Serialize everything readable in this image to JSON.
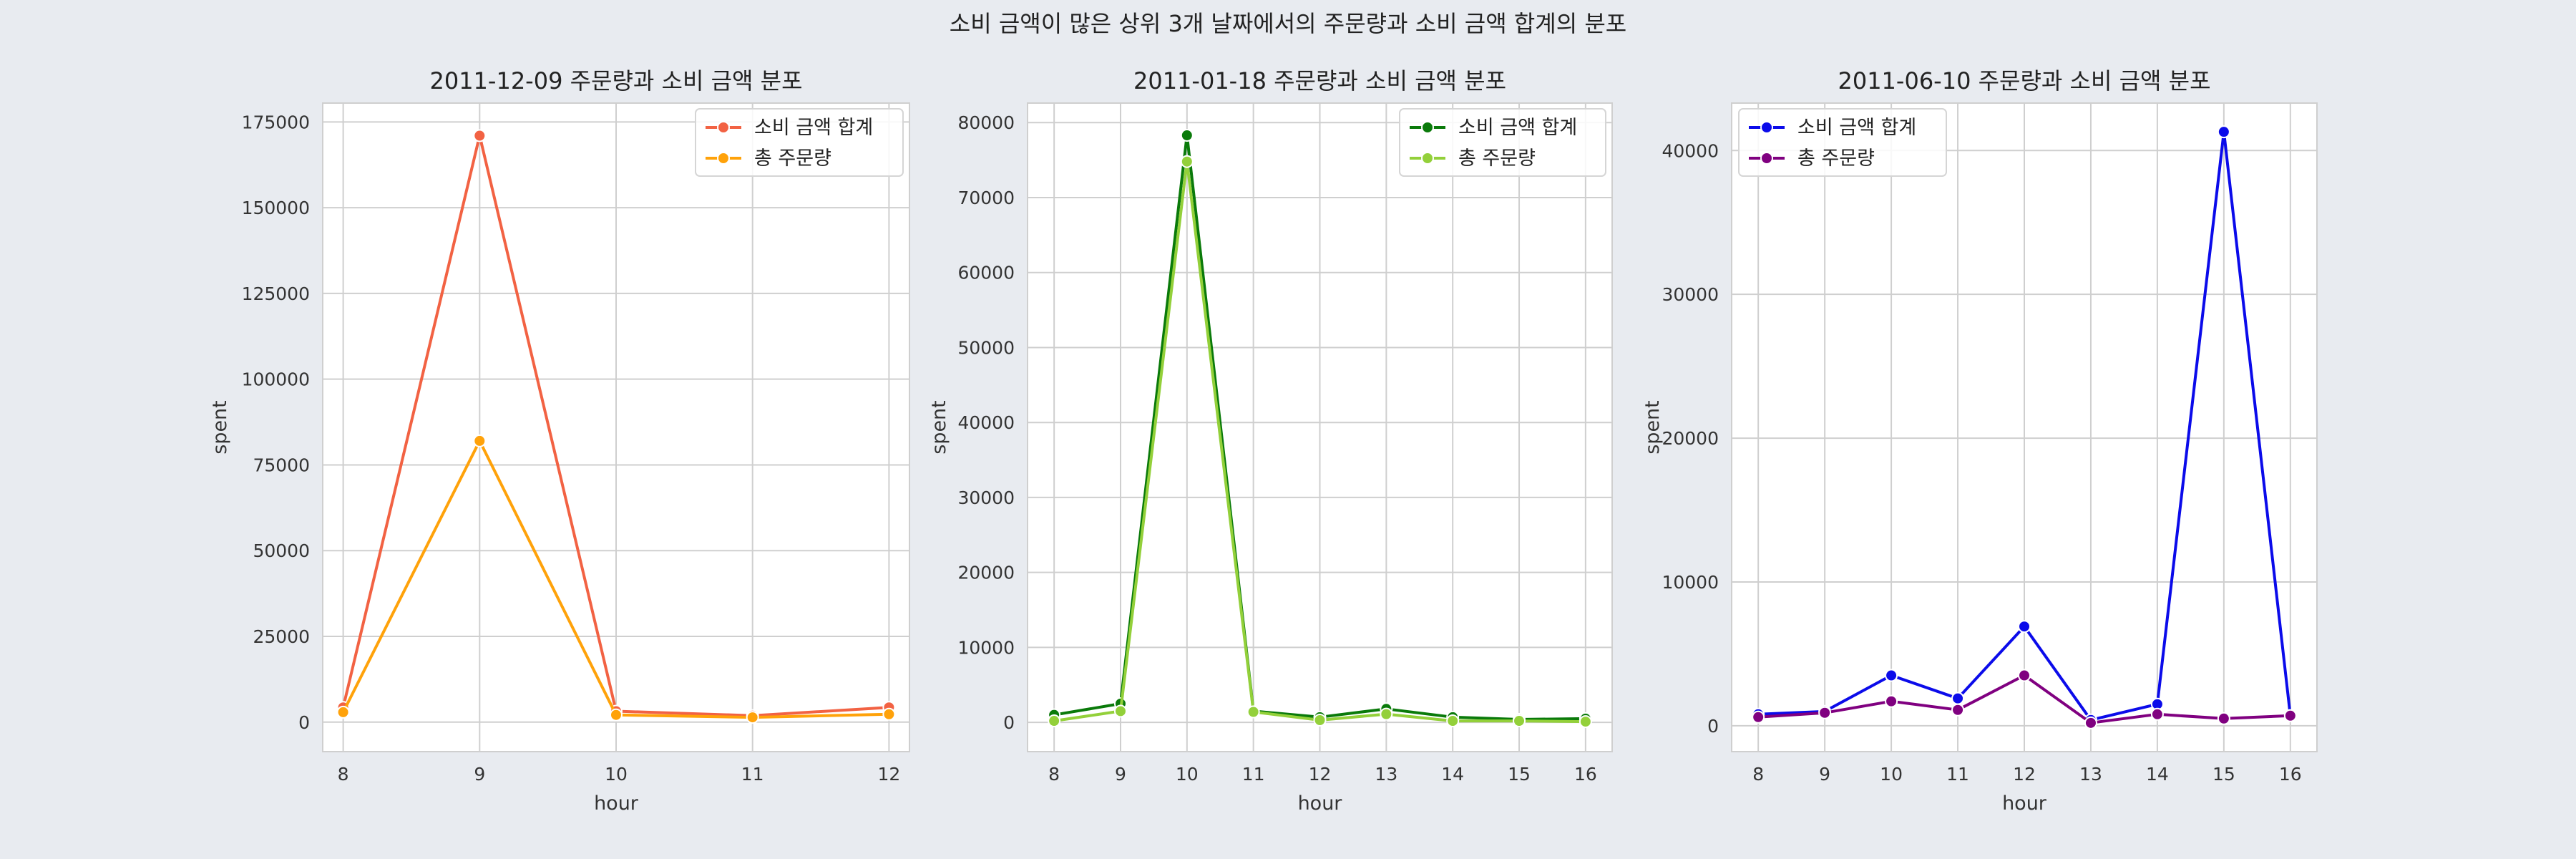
{
  "suptitle": "소비 금액이 많은 상위 3개 날짜에서의 주문량과 소비 금액 합계의 분포",
  "chart_data": [
    {
      "type": "line",
      "title": "2011-12-09 주문량과 소비 금액 분포",
      "xlabel": "hour",
      "ylabel": "spent",
      "x": [
        8,
        9,
        10,
        11,
        12
      ],
      "xticks": [
        8,
        9,
        10,
        11,
        12
      ],
      "xlim": [
        7.85,
        12.15
      ],
      "ylim": [
        -8600,
        180500
      ],
      "yticks": [
        0,
        25000,
        50000,
        75000,
        100000,
        125000,
        150000,
        175000
      ],
      "grid": true,
      "legend_position": "top-right",
      "series": [
        {
          "name": "소비 금액 합계",
          "color": "#f26243",
          "values": [
            4300,
            171000,
            3200,
            1900,
            4300
          ]
        },
        {
          "name": "총 주문량",
          "color": "#ffa20a",
          "values": [
            2900,
            82000,
            2100,
            1400,
            2300
          ]
        }
      ]
    },
    {
      "type": "line",
      "title": "2011-01-18 주문량과 소비 금액 분포",
      "xlabel": "hour",
      "ylabel": "spent",
      "x": [
        8,
        9,
        10,
        11,
        12,
        13,
        14,
        15,
        16
      ],
      "xticks": [
        8,
        9,
        10,
        11,
        12,
        13,
        14,
        15,
        16
      ],
      "xlim": [
        7.6,
        16.4
      ],
      "ylim": [
        -3900,
        82600
      ],
      "yticks": [
        0,
        10000,
        20000,
        30000,
        40000,
        50000,
        60000,
        70000,
        80000
      ],
      "grid": true,
      "legend_position": "top-right",
      "series": [
        {
          "name": "소비 금액 합계",
          "color": "#0a7a0a",
          "values": [
            1000,
            2500,
            78300,
            1500,
            700,
            1800,
            700,
            400,
            500
          ]
        },
        {
          "name": "총 주문량",
          "color": "#93d03a",
          "values": [
            200,
            1500,
            74800,
            1400,
            300,
            1100,
            200,
            200,
            100
          ]
        }
      ]
    },
    {
      "type": "line",
      "title": "2011-06-10 주문량과 소비 금액 분포",
      "xlabel": "hour",
      "ylabel": "spent",
      "x": [
        8,
        9,
        10,
        11,
        12,
        13,
        14,
        15,
        16
      ],
      "xticks": [
        8,
        9,
        10,
        11,
        12,
        13,
        14,
        15,
        16
      ],
      "xlim": [
        7.6,
        16.4
      ],
      "ylim": [
        -1800,
        43300
      ],
      "yticks": [
        0,
        10000,
        20000,
        30000,
        40000
      ],
      "grid": true,
      "legend_position": "top-left",
      "series": [
        {
          "name": "소비 금액 합계",
          "color": "#0b0bea",
          "values": [
            800,
            1000,
            3500,
            1900,
            6900,
            400,
            1500,
            41300,
            700
          ]
        },
        {
          "name": "총 주문량",
          "color": "#800080",
          "values": [
            600,
            900,
            1700,
            1100,
            3500,
            200,
            800,
            500,
            700
          ]
        }
      ]
    }
  ]
}
